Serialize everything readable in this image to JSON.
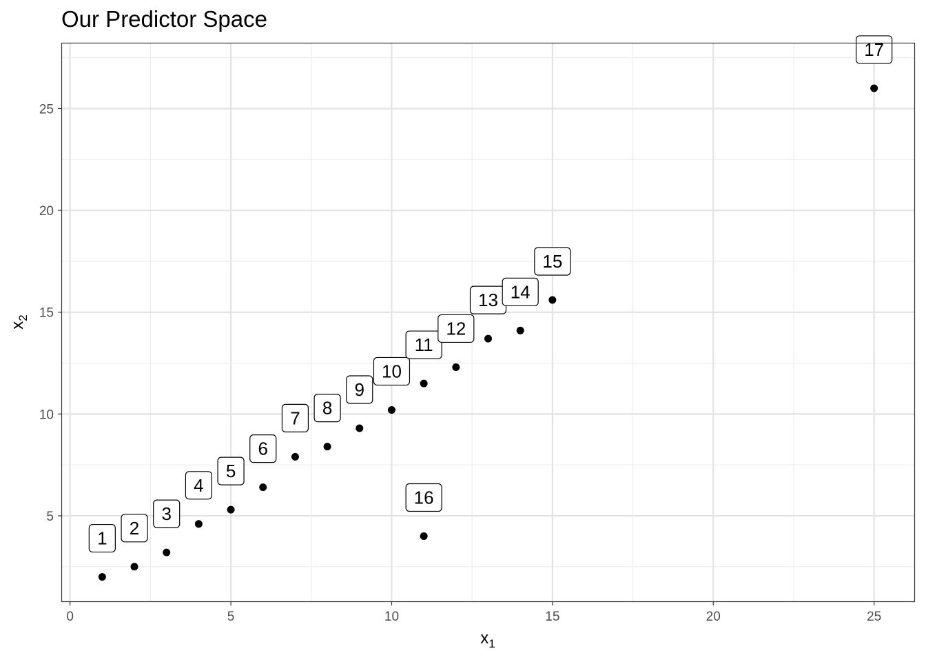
{
  "chart_data": {
    "type": "scatter",
    "title": "Our Predictor Space",
    "xlabel": {
      "base": "x",
      "sub": "1"
    },
    "ylabel": {
      "base": "x",
      "sub": "2"
    },
    "xlim": [
      -0.25,
      26.25
    ],
    "ylim": [
      0.8,
      28.2
    ],
    "x_ticks": [
      0,
      5,
      10,
      15,
      20,
      25
    ],
    "y_ticks": [
      5,
      10,
      15,
      20,
      25
    ],
    "grid": true,
    "theme": "bw",
    "point_color": "#000000",
    "points": [
      {
        "label": "1",
        "x": 1,
        "y": 2.0
      },
      {
        "label": "2",
        "x": 2,
        "y": 2.5
      },
      {
        "label": "3",
        "x": 3,
        "y": 3.2
      },
      {
        "label": "4",
        "x": 4,
        "y": 4.6
      },
      {
        "label": "5",
        "x": 5,
        "y": 5.3
      },
      {
        "label": "6",
        "x": 6,
        "y": 6.4
      },
      {
        "label": "7",
        "x": 7,
        "y": 7.9
      },
      {
        "label": "8",
        "x": 8,
        "y": 8.4
      },
      {
        "label": "9",
        "x": 9,
        "y": 9.3
      },
      {
        "label": "10",
        "x": 10,
        "y": 10.2
      },
      {
        "label": "11",
        "x": 11,
        "y": 11.5
      },
      {
        "label": "12",
        "x": 12,
        "y": 12.3
      },
      {
        "label": "13",
        "x": 13,
        "y": 13.7
      },
      {
        "label": "14",
        "x": 14,
        "y": 14.1
      },
      {
        "label": "15",
        "x": 15,
        "y": 15.6
      },
      {
        "label": "16",
        "x": 11,
        "y": 4.0
      },
      {
        "label": "17",
        "x": 25,
        "y": 26.0
      }
    ]
  }
}
